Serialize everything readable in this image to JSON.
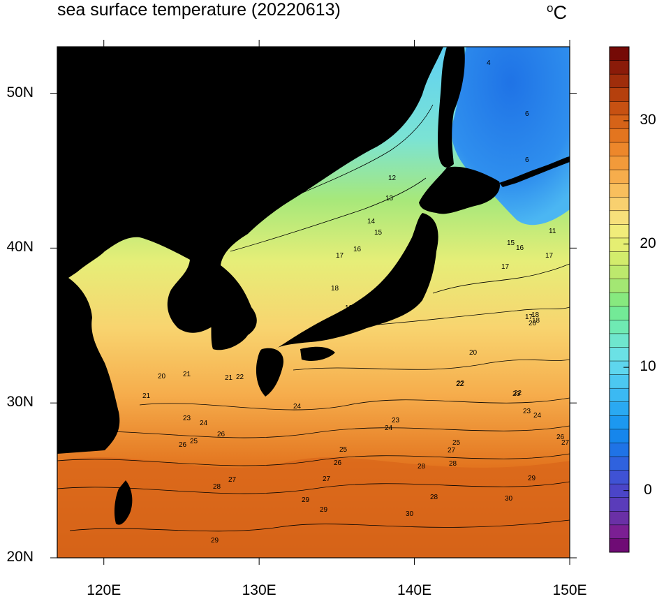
{
  "title": "sea surface temperature (20220613)",
  "unit": {
    "symbol": "C",
    "degree": "o"
  },
  "map": {
    "extent": {
      "lon_min": 117,
      "lon_max": 150,
      "lat_min": 20,
      "lat_max": 53
    },
    "land_color": "#000000",
    "lon_ticks": [
      {
        "value": 120,
        "label": "120E"
      },
      {
        "value": 130,
        "label": "130E"
      },
      {
        "value": 140,
        "label": "140E"
      },
      {
        "value": 150,
        "label": "150E"
      }
    ],
    "lat_ticks": [
      {
        "value": 20,
        "label": "20N"
      },
      {
        "value": 30,
        "label": "30N"
      },
      {
        "value": 40,
        "label": "40N"
      },
      {
        "value": 50,
        "label": "50N"
      }
    ],
    "contour_labels": [
      "4",
      "6",
      "6",
      "11",
      "12",
      "13",
      "14",
      "15",
      "16",
      "17",
      "17",
      "17",
      "15",
      "16",
      "18",
      "18",
      "19",
      "20",
      "17",
      "18",
      "20",
      "21",
      "20",
      "21",
      "22",
      "21",
      "22",
      "22",
      "23",
      "23",
      "24",
      "24",
      "25",
      "23",
      "24",
      "26",
      "25",
      "26",
      "27",
      "28",
      "27",
      "28",
      "29",
      "28",
      "29",
      "30",
      "29",
      "30",
      "28",
      "29",
      "26",
      "27",
      "25",
      "26",
      "27",
      "22",
      "23",
      "24"
    ]
  },
  "colorbar": {
    "min": -5,
    "max": 36,
    "tick_labels": [
      {
        "value": 0,
        "label": "0"
      },
      {
        "value": 10,
        "label": "10"
      },
      {
        "value": 20,
        "label": "20"
      },
      {
        "value": 30,
        "label": "30"
      }
    ],
    "colors": [
      "#6f0b75",
      "#7b1f93",
      "#6a30a6",
      "#5a3cba",
      "#4b45c8",
      "#3f52d4",
      "#2f62de",
      "#1f73e6",
      "#1686ec",
      "#1c98f0",
      "#2aa9f2",
      "#3bb9f3",
      "#4cc8f1",
      "#5ed6ee",
      "#6be1e5",
      "#6fe6ce",
      "#6feab3",
      "#73ea97",
      "#87e97f",
      "#a3e773",
      "#bde96d",
      "#d3ec6c",
      "#e5ee72",
      "#f1ec7a",
      "#f7e07b",
      "#f8d06f",
      "#f8bf5d",
      "#f6ad4c",
      "#f29a3a",
      "#ed872b",
      "#e3751f",
      "#d66318",
      "#c75112",
      "#b5400d",
      "#9f2d0b",
      "#8a1b09",
      "#750a06"
    ]
  }
}
